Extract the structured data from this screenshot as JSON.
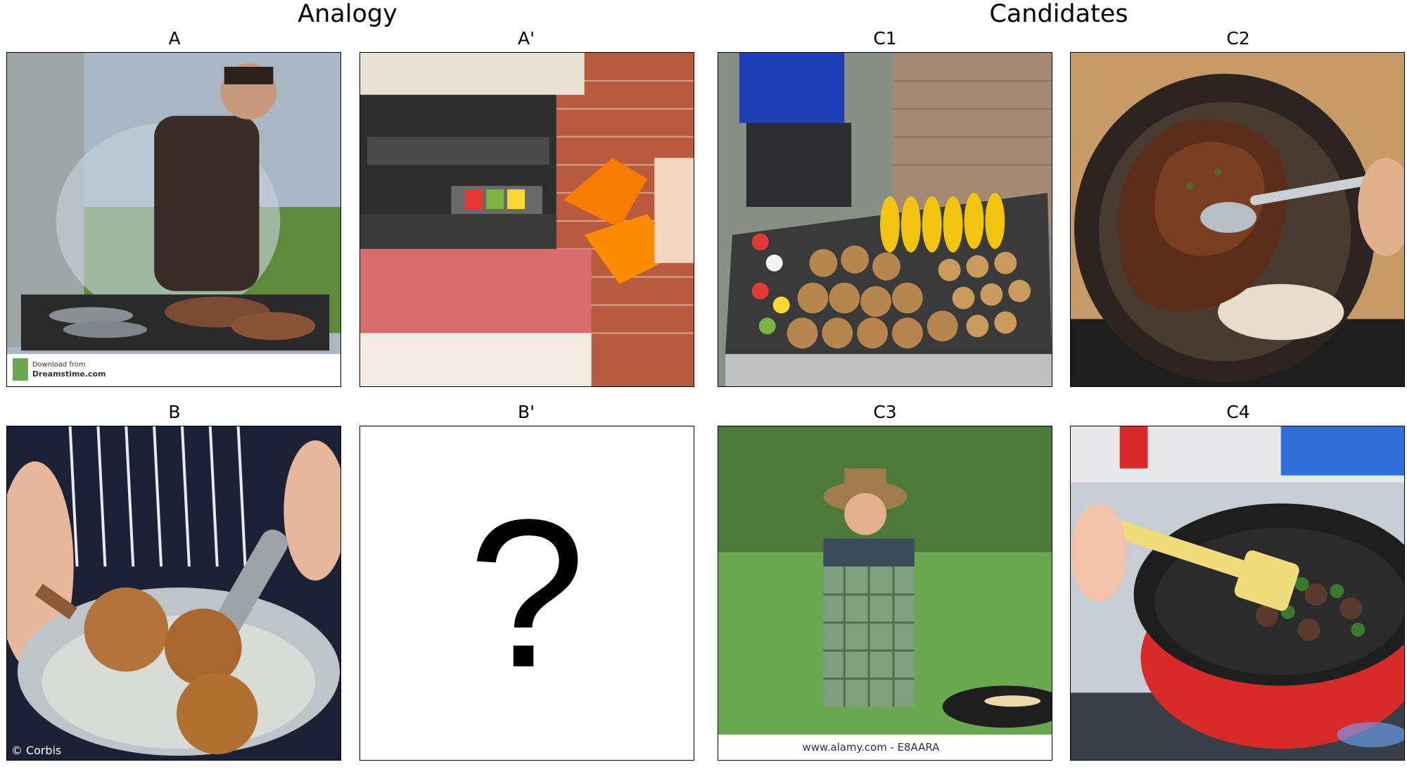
{
  "headings": {
    "analogy": "Analogy",
    "candidates": "Candidates"
  },
  "panels": {
    "A": {
      "label": "A",
      "watermark_line1": "Download from",
      "watermark_line2": "Dreamstime.com"
    },
    "A2": {
      "label": "A'"
    },
    "B": {
      "label": "B",
      "watermark": "© Corbis"
    },
    "B2": {
      "label": "B'",
      "placeholder": "?"
    },
    "C1": {
      "label": "C1"
    },
    "C2": {
      "label": "C2"
    },
    "C3": {
      "label": "C3",
      "watermark": "www.alamy.com - E8AARA"
    },
    "C4": {
      "label": "C4"
    }
  }
}
